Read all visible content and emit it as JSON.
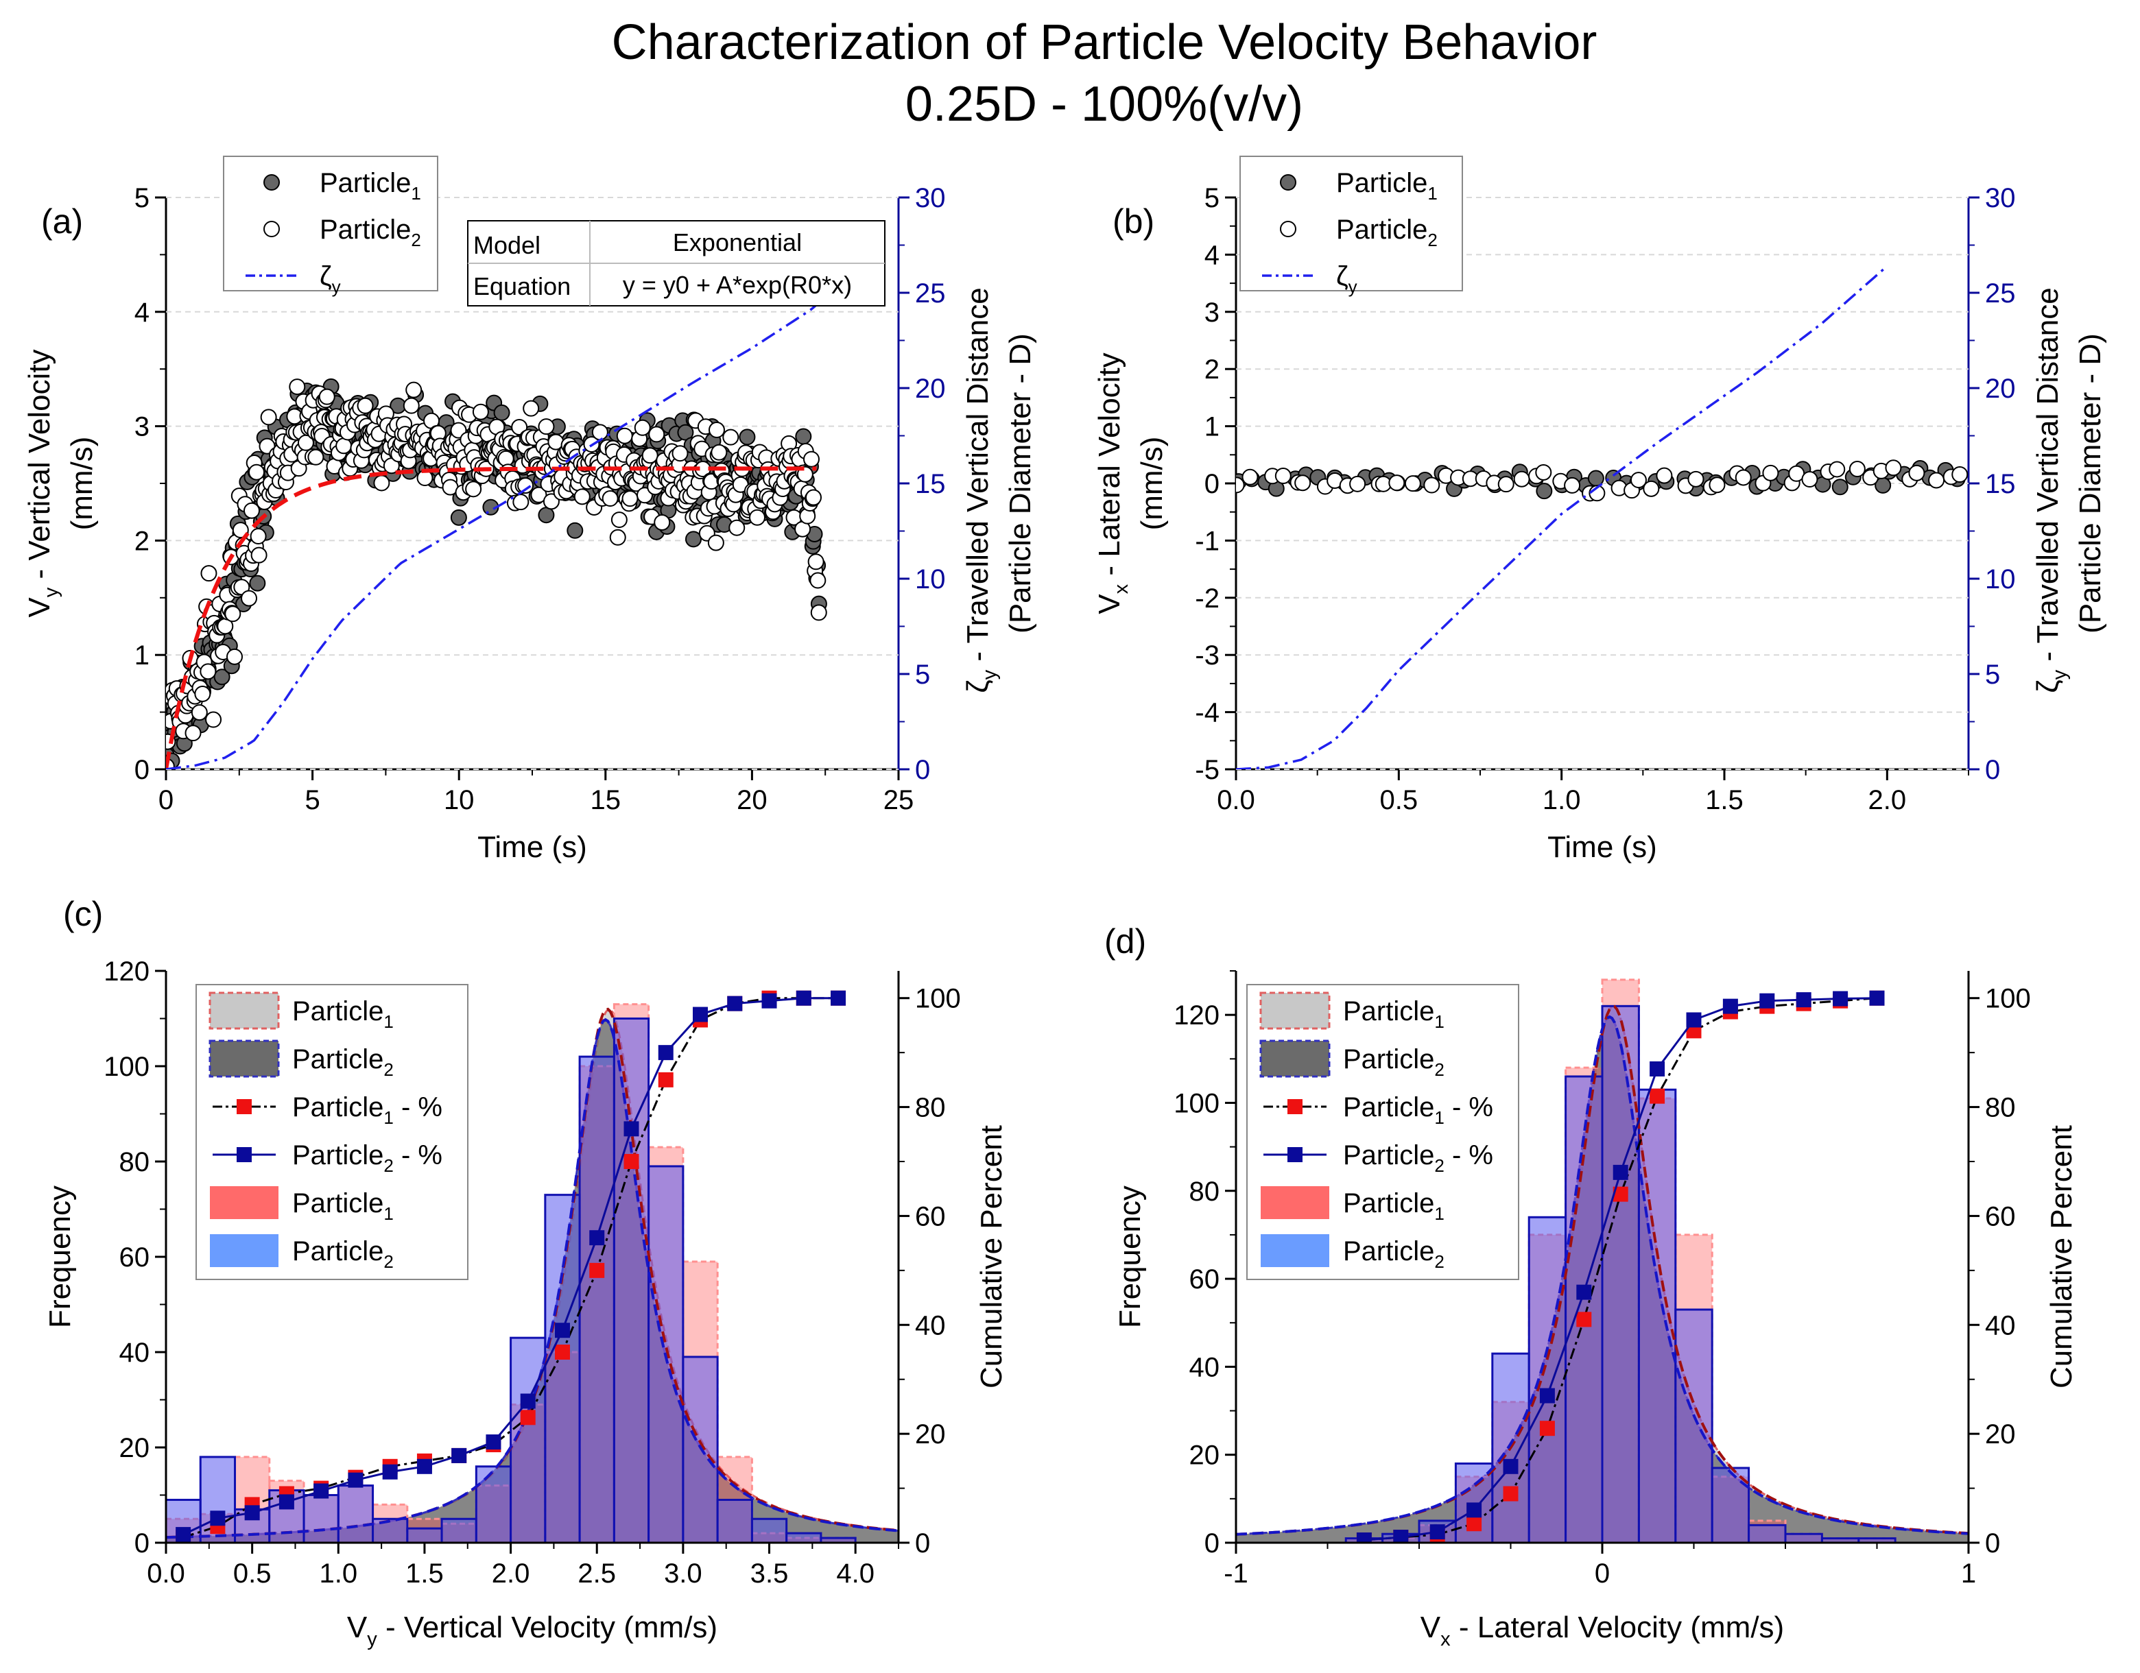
{
  "figure": {
    "title_line1": "Characterization of Particle Velocity Behavior",
    "title_line2": "0.25D - 100%(v/v)"
  },
  "colors": {
    "p1_scatter": "#666666",
    "p2_scatter": "#ffffff",
    "zeta": "#2020ee",
    "fit": "#ee1111",
    "right_axis": "#0a0a9a",
    "p1_bar": "#ff5a5a",
    "p2_bar": "#5a5aee",
    "p1_cum": "#ee1111",
    "p2_cum": "#0a0a9a"
  },
  "chart_data": [
    {
      "id": "a",
      "panel_label": "(a)",
      "type": "scatter",
      "xlabel": "Time (s)",
      "ylabel_main": "V",
      "ylabel_sub": "y",
      "ylabel_rest": " - Vertical Velocity",
      "ylabel_line2": "(mm/s)",
      "y2label_main": "ζ",
      "y2label_sub": "y",
      "y2label_rest": " - Travelled Vertical Distance",
      "y2label_line2": "(Particle Diameter - D)",
      "xlim": [
        0,
        25
      ],
      "ylim": [
        0,
        5
      ],
      "y2lim": [
        0,
        30
      ],
      "xticks": [
        "0",
        "5",
        "10",
        "15",
        "20",
        "25"
      ],
      "yticks": [
        "0",
        "1",
        "2",
        "3",
        "4",
        "5"
      ],
      "y2ticks": [
        "0",
        "5",
        "10",
        "15",
        "20",
        "25",
        "30"
      ],
      "legend": [
        {
          "main": "Particle",
          "sub": "1"
        },
        {
          "main": "Particle",
          "sub": "2"
        },
        {
          "main": "ζ",
          "sub": "y"
        }
      ],
      "fit_table": {
        "col1_header": "Model",
        "col2_header": "Exponential",
        "row_label": "Equation",
        "row_value": "y = y0 + A*exp(R0*x)"
      },
      "fit_curve": {
        "y0": 2.63,
        "A": -2.63,
        "R0": -0.55,
        "x_end": 22.3
      },
      "scatter_envelope": [
        {
          "t": 0,
          "mean": 0.3,
          "spread": 0.3
        },
        {
          "t": 1,
          "mean": 0.7,
          "spread": 0.4
        },
        {
          "t": 2,
          "mean": 1.3,
          "spread": 0.4
        },
        {
          "t": 3,
          "mean": 2.2,
          "spread": 0.5
        },
        {
          "t": 4,
          "mean": 2.8,
          "spread": 0.3
        },
        {
          "t": 5,
          "mean": 3.0,
          "spread": 0.3
        },
        {
          "t": 8,
          "mean": 2.85,
          "spread": 0.25
        },
        {
          "t": 12,
          "mean": 2.7,
          "spread": 0.3
        },
        {
          "t": 16,
          "mean": 2.6,
          "spread": 0.35
        },
        {
          "t": 20,
          "mean": 2.5,
          "spread": 0.35
        },
        {
          "t": 22,
          "mean": 2.4,
          "spread": 0.4
        },
        {
          "t": 22.3,
          "mean": 1.3,
          "spread": 0.3
        }
      ],
      "zeta_curve": {
        "t": [
          0,
          1,
          2,
          3,
          4,
          5,
          6,
          8,
          10,
          12,
          14,
          16,
          18,
          20,
          22,
          22.3
        ],
        "d": [
          0,
          0.2,
          0.6,
          1.5,
          3.5,
          5.8,
          7.8,
          10.8,
          12.6,
          14.4,
          16.5,
          18.4,
          20.3,
          22.1,
          24.1,
          24.5
        ]
      }
    },
    {
      "id": "b",
      "panel_label": "(b)",
      "type": "scatter",
      "xlabel": "Time (s)",
      "ylabel_main": "V",
      "ylabel_sub": "x",
      "ylabel_rest": " - Lateral Velocity",
      "ylabel_line2": "(mm/s)",
      "y2label_main": "ζ",
      "y2label_sub": "y",
      "y2label_rest": " - Travelled Vertical Distance",
      "y2label_line2": "(Particle Diameter - D)",
      "xlim": [
        0,
        2.25
      ],
      "ylim": [
        -5,
        5
      ],
      "y2lim": [
        0,
        30
      ],
      "xticks": [
        "0.0",
        "0.5",
        "1.0",
        "1.5",
        "2.0"
      ],
      "yticks": [
        "-5",
        "-4",
        "-3",
        "-2",
        "-1",
        "0",
        "1",
        "2",
        "3",
        "4",
        "5"
      ],
      "y2ticks": [
        "0",
        "5",
        "10",
        "15",
        "20",
        "25",
        "30"
      ],
      "legend": [
        {
          "main": "Particle",
          "sub": "1"
        },
        {
          "main": "Particle",
          "sub": "2"
        },
        {
          "main": "ζ",
          "sub": "y"
        }
      ],
      "scatter_envelope": [
        {
          "t": 0,
          "mean": 0.05,
          "spread": 0.12
        },
        {
          "t": 1,
          "mean": 0.0,
          "spread": 0.15
        },
        {
          "t": 2.25,
          "mean": 0.15,
          "spread": 0.18
        }
      ],
      "zeta_curve": {
        "t": [
          0,
          0.1,
          0.2,
          0.3,
          0.4,
          0.5,
          0.7,
          1.0,
          1.3,
          1.6,
          1.8,
          2.0
        ],
        "d": [
          0,
          0.1,
          0.5,
          1.5,
          3.2,
          5.2,
          8.5,
          13.4,
          17.2,
          20.8,
          23.4,
          26.4
        ]
      }
    },
    {
      "id": "c",
      "panel_label": "(c)",
      "type": "bar",
      "xlabel_main": "V",
      "xlabel_sub": "y",
      "xlabel_rest": " - Vertical Velocity (mm/s)",
      "ylabel": "Frequency",
      "y2label": "Cumulative Percent",
      "xlim": [
        0,
        4.25
      ],
      "ylim": [
        0,
        120
      ],
      "y2lim": [
        0,
        105
      ],
      "xticks": [
        "0.0",
        "0.5",
        "1.0",
        "1.5",
        "2.0",
        "2.5",
        "3.0",
        "3.5",
        "4.0"
      ],
      "yticks": [
        "0",
        "20",
        "40",
        "60",
        "80",
        "100",
        "120"
      ],
      "y2ticks": [
        "0",
        "20",
        "40",
        "60",
        "80",
        "100"
      ],
      "bin_width": 0.2,
      "bin_centers": [
        0.1,
        0.3,
        0.5,
        0.7,
        0.9,
        1.1,
        1.3,
        1.5,
        1.7,
        1.9,
        2.1,
        2.3,
        2.5,
        2.7,
        2.9,
        3.1,
        3.3,
        3.5,
        3.7,
        3.9
      ],
      "series": [
        {
          "name": "Particle₁",
          "values": [
            5,
            6,
            18,
            13,
            10,
            12,
            8,
            5,
            4,
            12,
            29,
            40,
            100,
            113,
            83,
            59,
            18,
            2,
            1,
            1
          ]
        },
        {
          "name": "Particle₂",
          "values": [
            9,
            18,
            7,
            11,
            10,
            12,
            5,
            3,
            5,
            16,
            43,
            73,
            102,
            110,
            79,
            39,
            9,
            5,
            2,
            1
          ]
        }
      ],
      "cumulative": [
        {
          "name": "Particle₁ - %",
          "values": [
            1,
            3,
            7,
            9,
            10,
            12,
            14,
            15,
            16,
            18,
            23,
            35,
            50,
            70,
            85,
            96,
            99,
            100,
            100,
            100
          ]
        },
        {
          "name": "Particle₂ - %",
          "values": [
            1.5,
            4.5,
            5.5,
            7.5,
            9.5,
            11.5,
            13,
            14,
            16,
            18.5,
            26,
            39,
            56,
            76,
            90,
            97,
            99,
            99.5,
            100,
            100
          ]
        }
      ],
      "lorentz": {
        "x0": 2.55,
        "gamma": 0.26,
        "A": 112
      },
      "legend": [
        {
          "main": "Particle",
          "sub": "1",
          "rest": ""
        },
        {
          "main": "Particle",
          "sub": "2",
          "rest": ""
        },
        {
          "main": "Particle",
          "sub": "1",
          "rest": " - %"
        },
        {
          "main": "Particle",
          "sub": "2",
          "rest": " - %"
        },
        {
          "main": "Particle",
          "sub": "1",
          "rest": ""
        },
        {
          "main": "Particle",
          "sub": "2",
          "rest": ""
        }
      ]
    },
    {
      "id": "d",
      "panel_label": "(d)",
      "type": "bar",
      "xlabel_main": "V",
      "xlabel_sub": "x",
      "xlabel_rest": " - Lateral Velocity (mm/s)",
      "ylabel": "Frequency",
      "y2label": "Cumulative Percent",
      "xlim": [
        -1,
        1
      ],
      "ylim": [
        0,
        130
      ],
      "y2lim": [
        0,
        105
      ],
      "xticks": [
        "-1",
        "0",
        "1"
      ],
      "yticks": [
        "0",
        "20",
        "40",
        "60",
        "80",
        "100",
        "120"
      ],
      "y2ticks": [
        "0",
        "20",
        "40",
        "60",
        "80",
        "100"
      ],
      "bin_width": 0.1,
      "bin_centers": [
        -0.65,
        -0.55,
        -0.45,
        -0.35,
        -0.25,
        -0.15,
        -0.05,
        0.05,
        0.15,
        0.25,
        0.35,
        0.45,
        0.55,
        0.65,
        0.75
      ],
      "series": [
        {
          "name": "Particle₁",
          "values": [
            1,
            1,
            4,
            15,
            32,
            70,
            108,
            128,
            101,
            70,
            15,
            5,
            2,
            1,
            1
          ]
        },
        {
          "name": "Particle₂",
          "values": [
            1,
            2,
            5,
            18,
            43,
            74,
            106,
            122,
            103,
            53,
            17,
            4,
            2,
            1,
            1
          ]
        }
      ],
      "cumulative": [
        {
          "name": "Particle₁ - %",
          "values": [
            0.5,
            1,
            1.5,
            3.5,
            9,
            21,
            41,
            64,
            82,
            94,
            97.5,
            98.5,
            99,
            99.5,
            100
          ]
        },
        {
          "name": "Particle₂ - %",
          "values": [
            0.5,
            1,
            2,
            6,
            14,
            27,
            46,
            68,
            87,
            96,
            98.5,
            99.5,
            99.7,
            99.9,
            100
          ]
        }
      ],
      "lorentz": {
        "x0": 0.02,
        "gamma": 0.13,
        "A": 122
      },
      "legend": [
        {
          "main": "Particle",
          "sub": "1",
          "rest": ""
        },
        {
          "main": "Particle",
          "sub": "2",
          "rest": ""
        },
        {
          "main": "Particle",
          "sub": "1",
          "rest": " - %"
        },
        {
          "main": "Particle",
          "sub": "2",
          "rest": " - %"
        },
        {
          "main": "Particle",
          "sub": "1",
          "rest": ""
        },
        {
          "main": "Particle",
          "sub": "2",
          "rest": ""
        }
      ]
    }
  ]
}
